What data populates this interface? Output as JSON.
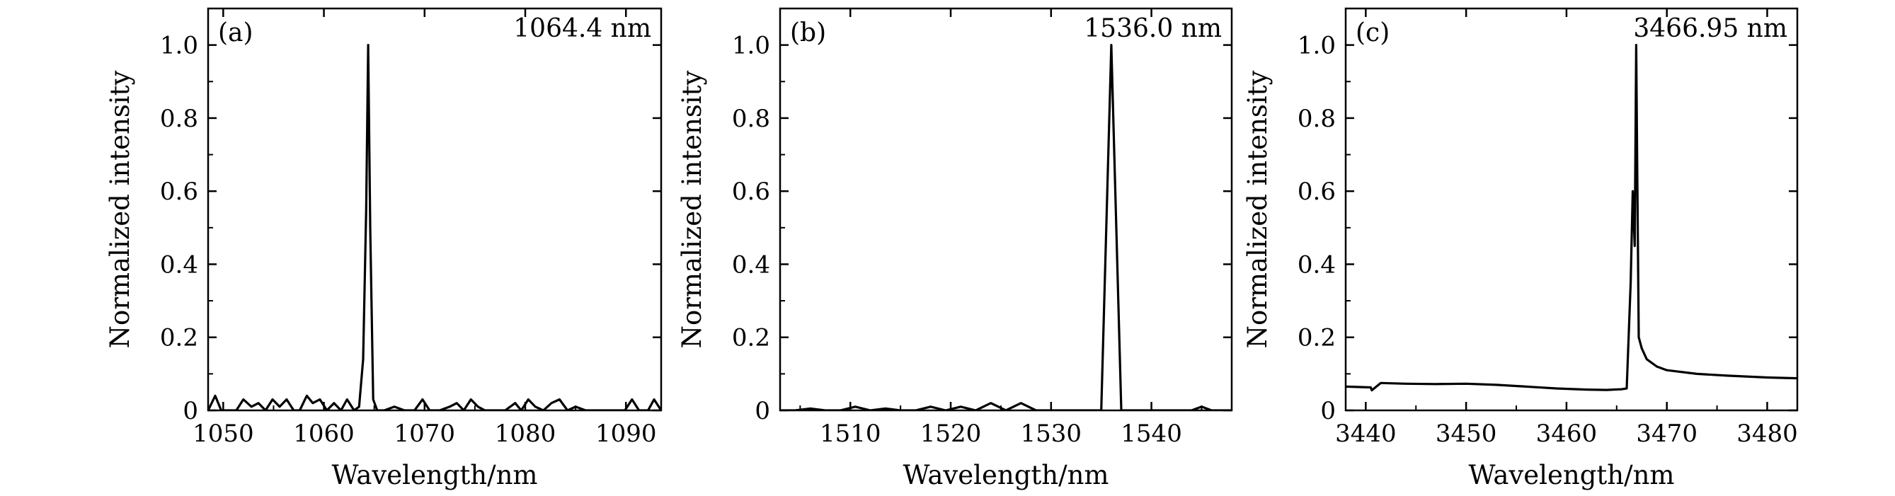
{
  "chart_data": [
    {
      "type": "line",
      "panel_label": "(a)",
      "annotation": "1064.4 nm",
      "xlabel": "Wavelength/nm",
      "ylabel": "Normalized intensity",
      "xlim": [
        1048.5,
        1093.5
      ],
      "ylim": [
        0,
        1.1
      ],
      "xticks": [
        1050,
        1060,
        1070,
        1080,
        1090
      ],
      "xtick_labels": [
        "1050",
        "1060",
        "1070",
        "1080",
        "1090"
      ],
      "yticks": [
        0,
        0.2,
        0.4,
        0.6,
        0.8,
        1.0
      ],
      "ytick_labels": [
        "0",
        "0.2",
        "0.4",
        "0.6",
        "0.8",
        "1.0"
      ],
      "grid": false,
      "series": [
        {
          "x": [
            1048.5,
            1049.2,
            1049.8,
            1050.5,
            1051.3,
            1052.0,
            1052.8,
            1053.5,
            1054.2,
            1054.9,
            1055.6,
            1056.3,
            1057.0,
            1057.6,
            1058.3,
            1058.9,
            1059.6,
            1060.3,
            1061.0,
            1061.7,
            1062.3,
            1063.0,
            1063.5,
            1063.9,
            1064.2,
            1064.4,
            1064.6,
            1064.9,
            1065.3,
            1066.0,
            1067.0,
            1068.0,
            1069.0,
            1069.8,
            1070.5,
            1071.5,
            1072.5,
            1073.2,
            1073.9,
            1074.6,
            1075.3,
            1076.0,
            1077.0,
            1078.0,
            1079.0,
            1079.6,
            1080.3,
            1081.0,
            1081.8,
            1082.6,
            1083.4,
            1084.2,
            1085.0,
            1086.0,
            1087.0,
            1088.0,
            1089.0,
            1089.9,
            1090.6,
            1091.3,
            1092.2,
            1092.8,
            1093.5
          ],
          "y": [
            0.0,
            0.04,
            0.0,
            0.0,
            0.0,
            0.03,
            0.01,
            0.02,
            0.0,
            0.03,
            0.01,
            0.03,
            0.0,
            0.0,
            0.04,
            0.02,
            0.03,
            0.0,
            0.02,
            0.0,
            0.03,
            0.0,
            0.01,
            0.14,
            0.55,
            1.0,
            0.5,
            0.03,
            0.0,
            0.0,
            0.01,
            0.0,
            0.0,
            0.03,
            0.0,
            0.0,
            0.01,
            0.02,
            0.0,
            0.03,
            0.01,
            0.0,
            0.0,
            0.0,
            0.02,
            0.0,
            0.03,
            0.01,
            0.0,
            0.02,
            0.03,
            0.0,
            0.01,
            0.0,
            0.0,
            0.0,
            0.0,
            0.0,
            0.03,
            0.0,
            0.0,
            0.03,
            0.0
          ]
        }
      ]
    },
    {
      "type": "line",
      "panel_label": "(b)",
      "annotation": "1536.0 nm",
      "xlabel": "Wavelength/nm",
      "ylabel": "Normalized intensity",
      "xlim": [
        1503,
        1548
      ],
      "ylim": [
        0,
        1.1
      ],
      "xticks": [
        1510,
        1520,
        1530,
        1540
      ],
      "xtick_labels": [
        "1510",
        "1520",
        "1530",
        "1540"
      ],
      "yticks": [
        0,
        0.2,
        0.4,
        0.6,
        0.8,
        1.0
      ],
      "ytick_labels": [
        "0",
        "0.2",
        "0.4",
        "0.6",
        "0.8",
        "1.0"
      ],
      "grid": false,
      "series": [
        {
          "x": [
            1503,
            1504.5,
            1506,
            1507.5,
            1509,
            1510.5,
            1512,
            1513.5,
            1515,
            1516.5,
            1518,
            1519.5,
            1521,
            1522.5,
            1524,
            1525.5,
            1527,
            1528.5,
            1530,
            1531.5,
            1533,
            1534.5,
            1535.0,
            1536.0,
            1537.0,
            1538,
            1540,
            1542,
            1544,
            1545,
            1546,
            1547,
            1548
          ],
          "y": [
            0.0,
            0.0,
            0.005,
            0.0,
            0.0,
            0.01,
            0.0,
            0.005,
            0.0,
            0.0,
            0.01,
            0.0,
            0.01,
            0.0,
            0.02,
            0.0,
            0.02,
            0.0,
            0.0,
            0.0,
            0.0,
            0.0,
            0.0,
            1.0,
            0.0,
            0.0,
            0.0,
            0.0,
            0.0,
            0.01,
            0.0,
            0.0,
            0.0
          ]
        }
      ]
    },
    {
      "type": "line",
      "panel_label": "(c)",
      "annotation": "3466.95 nm",
      "xlabel": "Wavelength/nm",
      "ylabel": "Normalized intensity",
      "xlim": [
        3438,
        3483
      ],
      "ylim": [
        0,
        1.1
      ],
      "xticks": [
        3440,
        3450,
        3460,
        3470,
        3480
      ],
      "xtick_labels": [
        "3440",
        "3450",
        "3460",
        "3470",
        "3480"
      ],
      "yticks": [
        0,
        0.2,
        0.4,
        0.6,
        0.8,
        1.0
      ],
      "ytick_labels": [
        "0",
        "0.2",
        "0.4",
        "0.6",
        "0.8",
        "1.0"
      ],
      "grid": false,
      "series": [
        {
          "x": [
            3438,
            3440.5,
            3440.6,
            3441.5,
            3444,
            3447,
            3450,
            3453,
            3456,
            3459,
            3462,
            3464,
            3465.5,
            3466.0,
            3466.4,
            3466.6,
            3466.8,
            3466.95,
            3467.05,
            3467.2,
            3467.5,
            3468,
            3469,
            3470,
            3473,
            3476,
            3480,
            3483
          ],
          "y": [
            0.065,
            0.063,
            0.055,
            0.075,
            0.073,
            0.072,
            0.073,
            0.07,
            0.065,
            0.06,
            0.057,
            0.056,
            0.058,
            0.06,
            0.35,
            0.6,
            0.45,
            1.0,
            0.65,
            0.2,
            0.17,
            0.14,
            0.12,
            0.11,
            0.1,
            0.095,
            0.09,
            0.088
          ]
        }
      ]
    }
  ]
}
